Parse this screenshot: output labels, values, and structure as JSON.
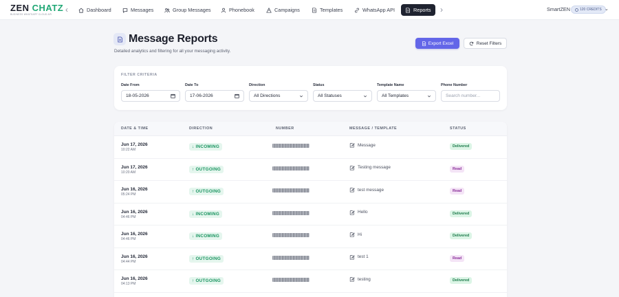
{
  "brand": {
    "logo_main": "ZEN ",
    "logo_accent": "CHATZ",
    "tagline": "BUSINESS WHATSAPP CLOUD API"
  },
  "nav": {
    "items": [
      {
        "label": "Dashboard",
        "icon": "home-icon"
      },
      {
        "label": "Messages",
        "icon": "chat-icon"
      },
      {
        "label": "Group Messages",
        "icon": "group-icon"
      },
      {
        "label": "Phonebook",
        "icon": "contacts-icon"
      },
      {
        "label": "Campaigns",
        "icon": "campaign-icon"
      },
      {
        "label": "Templates",
        "icon": "document-icon"
      },
      {
        "label": "WhatsApp API",
        "icon": "link-icon"
      },
      {
        "label": "Reports",
        "icon": "report-icon",
        "active": true
      }
    ]
  },
  "account": {
    "name": "SmartZEN",
    "credits": "120 CREDITS"
  },
  "header": {
    "title": "Message Reports",
    "subtitle": "Detailed analytics and filtering for all your messaging activity.",
    "export_label": "Export Excel",
    "reset_label": "Reset Filters"
  },
  "filters": {
    "section_title": "FILTER CRITERIA",
    "date_from": {
      "label": "Date From",
      "value": "18-05-2026"
    },
    "date_to": {
      "label": "Date To",
      "value": "17-06-2026"
    },
    "direction": {
      "label": "Direction",
      "value": "All Directions"
    },
    "status": {
      "label": "Status",
      "value": "All Statuses"
    },
    "template": {
      "label": "Template Name",
      "value": "All Templates"
    },
    "phone": {
      "label": "Phone Number",
      "placeholder": "Search number..."
    }
  },
  "table": {
    "columns": {
      "date": "DATE & TIME",
      "direction": "DIRECTION",
      "number": "NUMBER",
      "message": "MESSAGE / TEMPLATE",
      "status": "STATUS"
    },
    "rows": [
      {
        "date": "Jun 17, 2026",
        "time": "10:22 AM",
        "direction": "INCOMING",
        "arrow": "↓",
        "message": "Message",
        "status": "Delivered",
        "status_kind": "delivered"
      },
      {
        "date": "Jun 17, 2026",
        "time": "10:20 AM",
        "direction": "OUTGOING",
        "arrow": "↑",
        "message": "Testing message",
        "status": "Read",
        "status_kind": "read"
      },
      {
        "date": "Jun 16, 2026",
        "time": "05:24 PM",
        "direction": "OUTGOING",
        "arrow": "↑",
        "message": "test message",
        "status": "Read",
        "status_kind": "read"
      },
      {
        "date": "Jun 16, 2026",
        "time": "04:46 PM",
        "direction": "INCOMING",
        "arrow": "↓",
        "message": "Hello",
        "status": "Delivered",
        "status_kind": "delivered"
      },
      {
        "date": "Jun 16, 2026",
        "time": "04:46 PM",
        "direction": "INCOMING",
        "arrow": "↓",
        "message": "Hi",
        "status": "Delivered",
        "status_kind": "delivered"
      },
      {
        "date": "Jun 16, 2026",
        "time": "04:44 PM",
        "direction": "OUTGOING",
        "arrow": "↑",
        "message": "test 1",
        "status": "Read",
        "status_kind": "read"
      },
      {
        "date": "Jun 16, 2026",
        "time": "04:13 PM",
        "direction": "OUTGOING",
        "arrow": "↑",
        "message": "testing",
        "status": "Delivered",
        "status_kind": "delivered"
      }
    ]
  }
}
